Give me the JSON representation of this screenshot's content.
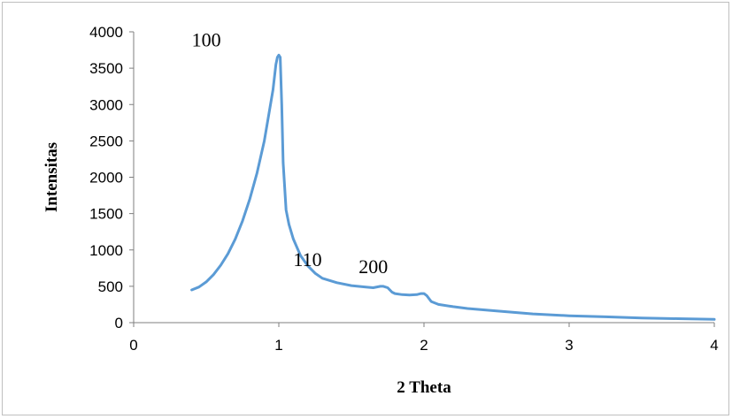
{
  "chart_data": {
    "type": "line",
    "title": "",
    "xlabel": "2 Theta",
    "ylabel": "Intensitas",
    "xlim": [
      0,
      4
    ],
    "ylim": [
      0,
      4000
    ],
    "x_ticks": [
      0,
      1,
      2,
      3,
      4
    ],
    "y_ticks": [
      0,
      500,
      1000,
      1500,
      2000,
      2500,
      3000,
      3500,
      4000
    ],
    "grid": false,
    "legend": "none",
    "series_color": "#5b9bd5",
    "series": [
      {
        "x": [
          0.4,
          0.45,
          0.5,
          0.55,
          0.6,
          0.65,
          0.7,
          0.75,
          0.8,
          0.85,
          0.9,
          0.93,
          0.96,
          0.98,
          0.99,
          1.0,
          1.01,
          1.02,
          1.03,
          1.05,
          1.07,
          1.1,
          1.15,
          1.2,
          1.25,
          1.3,
          1.4,
          1.5,
          1.6,
          1.65,
          1.7,
          1.72,
          1.75,
          1.78,
          1.8,
          1.85,
          1.9,
          1.95,
          1.98,
          2.0,
          2.02,
          2.05,
          2.1,
          2.2,
          2.3,
          2.5,
          2.75,
          3.0,
          3.25,
          3.5,
          3.75,
          4.0
        ],
        "values": [
          450,
          490,
          560,
          660,
          790,
          950,
          1150,
          1400,
          1700,
          2060,
          2500,
          2850,
          3200,
          3550,
          3650,
          3680,
          3650,
          3000,
          2200,
          1550,
          1350,
          1150,
          920,
          780,
          680,
          610,
          550,
          510,
          490,
          480,
          500,
          500,
          480,
          420,
          400,
          385,
          380,
          385,
          400,
          400,
          370,
          290,
          250,
          220,
          195,
          160,
          120,
          95,
          80,
          65,
          55,
          45
        ]
      }
    ],
    "annotations": [
      {
        "text": "100",
        "x": 0.4,
        "y": 3800
      },
      {
        "text": "110",
        "x": 1.1,
        "y": 780
      },
      {
        "text": "200",
        "x": 1.55,
        "y": 680
      }
    ]
  }
}
